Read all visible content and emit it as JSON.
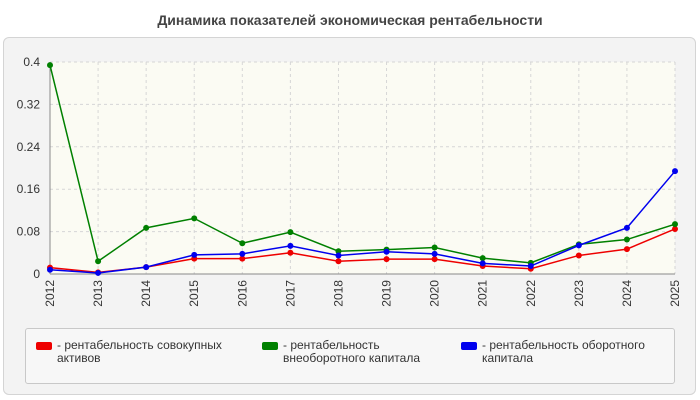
{
  "chart_data": {
    "type": "line",
    "title": "Динамика показателей экономическая рентабельности",
    "xlabel": "",
    "ylabel": "",
    "categories": [
      "2012",
      "2013",
      "2014",
      "2015",
      "2016",
      "2017",
      "2018",
      "2019",
      "2020",
      "2021",
      "2022",
      "2023",
      "2024",
      "2025"
    ],
    "ylim": [
      0,
      0.4
    ],
    "yticks": [
      "0",
      "0.08",
      "0.16",
      "0.24",
      "0.32",
      "0.4"
    ],
    "grid": true,
    "legend_position": "bottom",
    "series": [
      {
        "name": "- рентабельность совокупных активов",
        "color": "#ee0000",
        "values": [
          0.012,
          0.003,
          0.013,
          0.029,
          0.029,
          0.04,
          0.024,
          0.028,
          0.028,
          0.015,
          0.01,
          0.035,
          0.047,
          0.085
        ]
      },
      {
        "name": "- рентабельность внеоборотного капитала",
        "color": "#008000",
        "values": [
          0.394,
          0.024,
          0.087,
          0.105,
          0.058,
          0.079,
          0.043,
          0.046,
          0.05,
          0.03,
          0.021,
          0.056,
          0.065,
          0.094
        ]
      },
      {
        "name": "- рентабельность оборотного капитала",
        "color": "#0000ee",
        "values": [
          0.008,
          0.002,
          0.013,
          0.036,
          0.038,
          0.053,
          0.035,
          0.042,
          0.038,
          0.02,
          0.015,
          0.054,
          0.087,
          0.194
        ]
      }
    ]
  }
}
